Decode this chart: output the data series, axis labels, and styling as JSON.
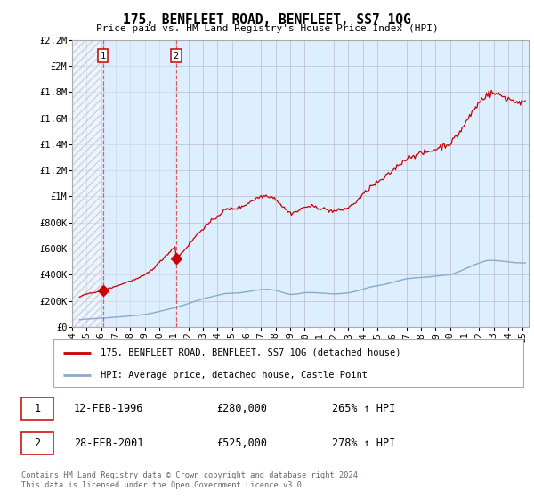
{
  "title": "175, BENFLEET ROAD, BENFLEET, SS7 1QG",
  "subtitle": "Price paid vs. HM Land Registry's House Price Index (HPI)",
  "ylim": [
    0,
    2200000
  ],
  "yticks": [
    0,
    200000,
    400000,
    600000,
    800000,
    1000000,
    1200000,
    1400000,
    1600000,
    1800000,
    2000000,
    2200000
  ],
  "ytick_labels": [
    "£0",
    "£200K",
    "£400K",
    "£600K",
    "£800K",
    "£1M",
    "£1.2M",
    "£1.4M",
    "£1.6M",
    "£1.8M",
    "£2M",
    "£2.2M"
  ],
  "plot_bg_color": "#ddeeff",
  "grid_color": "#bbbbcc",
  "red_line_color": "#cc0000",
  "blue_line_color": "#88aacc",
  "purchase1_x": 1996.12,
  "purchase1_y": 280000,
  "purchase1_label": "1",
  "purchase1_date": "12-FEB-1996",
  "purchase1_price": "£280,000",
  "purchase1_hpi": "265% ↑ HPI",
  "purchase2_x": 2001.15,
  "purchase2_y": 525000,
  "purchase2_label": "2",
  "purchase2_date": "28-FEB-2001",
  "purchase2_price": "£525,000",
  "purchase2_hpi": "278% ↑ HPI",
  "legend_line1": "175, BENFLEET ROAD, BENFLEET, SS7 1QG (detached house)",
  "legend_line2": "HPI: Average price, detached house, Castle Point",
  "footer": "Contains HM Land Registry data © Crown copyright and database right 2024.\nThis data is licensed under the Open Government Licence v3.0.",
  "xtick_years": [
    1994,
    1995,
    1996,
    1997,
    1998,
    1999,
    2000,
    2001,
    2002,
    2003,
    2004,
    2005,
    2006,
    2007,
    2008,
    2009,
    2010,
    2011,
    2012,
    2013,
    2014,
    2015,
    2016,
    2017,
    2018,
    2019,
    2020,
    2021,
    2022,
    2023,
    2024,
    2025
  ]
}
